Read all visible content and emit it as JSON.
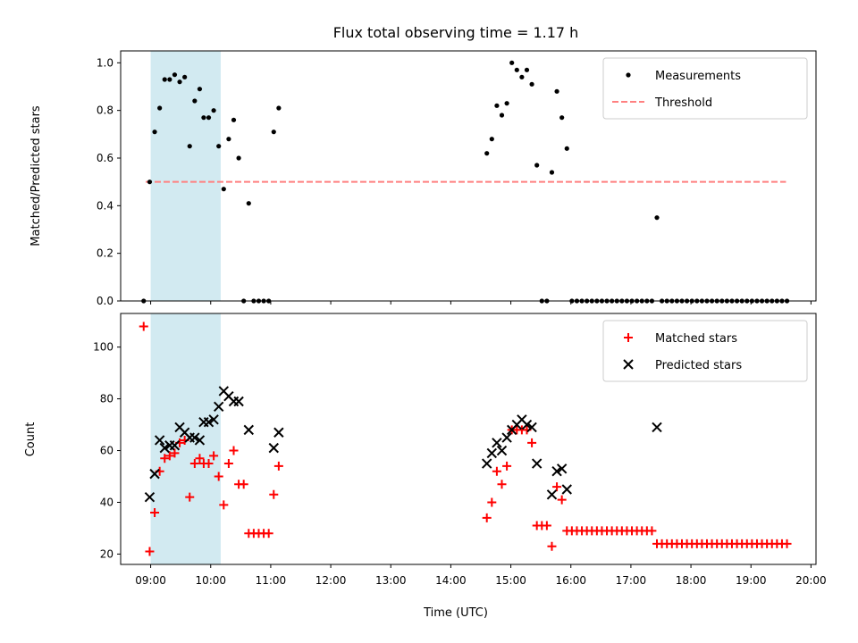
{
  "title": "Flux total observing time = 1.17 h",
  "colors": {
    "measurement": "#000000",
    "threshold": "#ff8080",
    "matched": "#ff0000",
    "predicted": "#000000",
    "shade": "#add8e6"
  },
  "chart_data": [
    {
      "type": "scatter",
      "ylabel": "Matched/Predicted stars",
      "xlim": [
        "08:30",
        "20:05"
      ],
      "ylim": [
        0,
        1.05
      ],
      "yticks": [
        "0.0",
        "0.2",
        "0.4",
        "0.6",
        "0.8",
        "1.0"
      ],
      "shaded_interval": [
        "09:00",
        "10:10"
      ],
      "threshold": {
        "name": "Threshold",
        "y": 0.5,
        "x_range": [
          "08:55",
          "19:35"
        ]
      },
      "legend": [
        "Measurements",
        "Threshold"
      ],
      "legend_position": "upper right",
      "series": [
        {
          "name": "Measurements",
          "points": [
            [
              "08:53",
              0.0
            ],
            [
              "08:59",
              0.5
            ],
            [
              "09:04",
              0.71
            ],
            [
              "09:09",
              0.81
            ],
            [
              "09:14",
              0.93
            ],
            [
              "09:19",
              0.93
            ],
            [
              "09:24",
              0.95
            ],
            [
              "09:29",
              0.92
            ],
            [
              "09:34",
              0.94
            ],
            [
              "09:39",
              0.65
            ],
            [
              "09:44",
              0.84
            ],
            [
              "09:49",
              0.89
            ],
            [
              "09:53",
              0.77
            ],
            [
              "09:58",
              0.77
            ],
            [
              "10:03",
              0.8
            ],
            [
              "10:08",
              0.65
            ],
            [
              "10:13",
              0.47
            ],
            [
              "10:18",
              0.68
            ],
            [
              "10:23",
              0.76
            ],
            [
              "10:28",
              0.6
            ],
            [
              "10:33",
              0.0
            ],
            [
              "10:38",
              0.41
            ],
            [
              "10:43",
              0.0
            ],
            [
              "10:48",
              0.0
            ],
            [
              "10:53",
              0.0
            ],
            [
              "10:58",
              0.0
            ],
            [
              "11:03",
              0.71
            ],
            [
              "11:08",
              0.81
            ],
            [
              "14:36",
              0.62
            ],
            [
              "14:41",
              0.68
            ],
            [
              "14:46",
              0.82
            ],
            [
              "14:51",
              0.78
            ],
            [
              "14:56",
              0.83
            ],
            [
              "15:01",
              1.0
            ],
            [
              "15:06",
              0.97
            ],
            [
              "15:11",
              0.94
            ],
            [
              "15:16",
              0.97
            ],
            [
              "15:21",
              0.91
            ],
            [
              "15:26",
              0.57
            ],
            [
              "15:31",
              0.0
            ],
            [
              "15:36",
              0.0
            ],
            [
              "15:41",
              0.54
            ],
            [
              "15:46",
              0.88
            ],
            [
              "15:51",
              0.77
            ],
            [
              "15:56",
              0.64
            ],
            [
              "16:01",
              0.0
            ],
            [
              "16:06",
              0.0
            ],
            [
              "16:11",
              0.0
            ],
            [
              "16:16",
              0.0
            ],
            [
              "16:21",
              0.0
            ],
            [
              "16:26",
              0.0
            ],
            [
              "16:31",
              0.0
            ],
            [
              "16:36",
              0.0
            ],
            [
              "16:41",
              0.0
            ],
            [
              "16:46",
              0.0
            ],
            [
              "16:51",
              0.0
            ],
            [
              "16:56",
              0.0
            ],
            [
              "17:01",
              0.0
            ],
            [
              "17:06",
              0.0
            ],
            [
              "17:11",
              0.0
            ],
            [
              "17:16",
              0.0
            ],
            [
              "17:21",
              0.0
            ],
            [
              "17:26",
              0.35
            ],
            [
              "17:31",
              0.0
            ],
            [
              "17:36",
              0.0
            ],
            [
              "17:41",
              0.0
            ],
            [
              "17:46",
              0.0
            ],
            [
              "17:51",
              0.0
            ],
            [
              "17:56",
              0.0
            ],
            [
              "18:01",
              0.0
            ],
            [
              "18:06",
              0.0
            ],
            [
              "18:11",
              0.0
            ],
            [
              "18:16",
              0.0
            ],
            [
              "18:21",
              0.0
            ],
            [
              "18:26",
              0.0
            ],
            [
              "18:31",
              0.0
            ],
            [
              "18:36",
              0.0
            ],
            [
              "18:41",
              0.0
            ],
            [
              "18:46",
              0.0
            ],
            [
              "18:51",
              0.0
            ],
            [
              "18:56",
              0.0
            ],
            [
              "19:01",
              0.0
            ],
            [
              "19:06",
              0.0
            ],
            [
              "19:11",
              0.0
            ],
            [
              "19:16",
              0.0
            ],
            [
              "19:21",
              0.0
            ],
            [
              "19:26",
              0.0
            ],
            [
              "19:31",
              0.0
            ],
            [
              "19:36",
              0.0
            ]
          ]
        }
      ]
    },
    {
      "type": "scatter",
      "ylabel": "Count",
      "xlabel": "Time (UTC)",
      "xlim": [
        "08:30",
        "20:05"
      ],
      "ylim": [
        16,
        113
      ],
      "yticks": [
        "20",
        "40",
        "60",
        "80",
        "100"
      ],
      "xticks": [
        "09:00",
        "10:00",
        "11:00",
        "12:00",
        "13:00",
        "14:00",
        "15:00",
        "16:00",
        "17:00",
        "18:00",
        "19:00",
        "20:00"
      ],
      "shaded_interval": [
        "09:00",
        "10:10"
      ],
      "legend": [
        "Matched stars",
        "Predicted stars"
      ],
      "legend_position": "upper right",
      "series": [
        {
          "name": "Matched stars",
          "marker": "+",
          "points": [
            [
              "08:53",
              108
            ],
            [
              "08:59",
              21
            ],
            [
              "09:04",
              36
            ],
            [
              "09:09",
              52
            ],
            [
              "09:14",
              57
            ],
            [
              "09:19",
              58
            ],
            [
              "09:24",
              59
            ],
            [
              "09:29",
              63
            ],
            [
              "09:34",
              64
            ],
            [
              "09:39",
              42
            ],
            [
              "09:44",
              55
            ],
            [
              "09:49",
              57
            ],
            [
              "09:53",
              55
            ],
            [
              "09:58",
              55
            ],
            [
              "10:03",
              58
            ],
            [
              "10:08",
              50
            ],
            [
              "10:13",
              39
            ],
            [
              "10:18",
              55
            ],
            [
              "10:23",
              60
            ],
            [
              "10:28",
              47
            ],
            [
              "10:33",
              47
            ],
            [
              "10:38",
              28
            ],
            [
              "10:43",
              28
            ],
            [
              "10:48",
              28
            ],
            [
              "10:53",
              28
            ],
            [
              "10:58",
              28
            ],
            [
              "11:03",
              43
            ],
            [
              "11:08",
              54
            ],
            [
              "14:36",
              34
            ],
            [
              "14:41",
              40
            ],
            [
              "14:46",
              52
            ],
            [
              "14:51",
              47
            ],
            [
              "14:56",
              54
            ],
            [
              "15:01",
              68
            ],
            [
              "15:06",
              68
            ],
            [
              "15:11",
              68
            ],
            [
              "15:16",
              68
            ],
            [
              "15:21",
              63
            ],
            [
              "15:26",
              31
            ],
            [
              "15:31",
              31
            ],
            [
              "15:36",
              31
            ],
            [
              "15:41",
              23
            ],
            [
              "15:46",
              46
            ],
            [
              "15:51",
              41
            ],
            [
              "15:56",
              29
            ],
            [
              "16:01",
              29
            ],
            [
              "16:06",
              29
            ],
            [
              "16:11",
              29
            ],
            [
              "16:16",
              29
            ],
            [
              "16:21",
              29
            ],
            [
              "16:26",
              29
            ],
            [
              "16:31",
              29
            ],
            [
              "16:36",
              29
            ],
            [
              "16:41",
              29
            ],
            [
              "16:46",
              29
            ],
            [
              "16:51",
              29
            ],
            [
              "16:56",
              29
            ],
            [
              "17:01",
              29
            ],
            [
              "17:06",
              29
            ],
            [
              "17:11",
              29
            ],
            [
              "17:16",
              29
            ],
            [
              "17:21",
              29
            ],
            [
              "17:26",
              24
            ],
            [
              "17:31",
              24
            ],
            [
              "17:36",
              24
            ],
            [
              "17:41",
              24
            ],
            [
              "17:46",
              24
            ],
            [
              "17:51",
              24
            ],
            [
              "17:56",
              24
            ],
            [
              "18:01",
              24
            ],
            [
              "18:06",
              24
            ],
            [
              "18:11",
              24
            ],
            [
              "18:16",
              24
            ],
            [
              "18:21",
              24
            ],
            [
              "18:26",
              24
            ],
            [
              "18:31",
              24
            ],
            [
              "18:36",
              24
            ],
            [
              "18:41",
              24
            ],
            [
              "18:46",
              24
            ],
            [
              "18:51",
              24
            ],
            [
              "18:56",
              24
            ],
            [
              "19:01",
              24
            ],
            [
              "19:06",
              24
            ],
            [
              "19:11",
              24
            ],
            [
              "19:16",
              24
            ],
            [
              "19:21",
              24
            ],
            [
              "19:26",
              24
            ],
            [
              "19:31",
              24
            ],
            [
              "19:36",
              24
            ]
          ]
        },
        {
          "name": "Predicted stars",
          "marker": "x",
          "points": [
            [
              "08:59",
              42
            ],
            [
              "09:04",
              51
            ],
            [
              "09:09",
              64
            ],
            [
              "09:14",
              61
            ],
            [
              "09:19",
              62
            ],
            [
              "09:24",
              62
            ],
            [
              "09:29",
              69
            ],
            [
              "09:34",
              67
            ],
            [
              "09:39",
              65
            ],
            [
              "09:44",
              65
            ],
            [
              "09:49",
              64
            ],
            [
              "09:53",
              71
            ],
            [
              "09:58",
              71
            ],
            [
              "10:03",
              72
            ],
            [
              "10:08",
              77
            ],
            [
              "10:13",
              83
            ],
            [
              "10:18",
              81
            ],
            [
              "10:23",
              79
            ],
            [
              "10:28",
              79
            ],
            [
              "10:38",
              68
            ],
            [
              "11:03",
              61
            ],
            [
              "11:08",
              67
            ],
            [
              "14:36",
              55
            ],
            [
              "14:41",
              59
            ],
            [
              "14:46",
              63
            ],
            [
              "14:51",
              60
            ],
            [
              "14:56",
              65
            ],
            [
              "15:01",
              68
            ],
            [
              "15:06",
              70
            ],
            [
              "15:11",
              72
            ],
            [
              "15:16",
              70
            ],
            [
              "15:21",
              69
            ],
            [
              "15:26",
              55
            ],
            [
              "15:41",
              43
            ],
            [
              "15:46",
              52
            ],
            [
              "15:51",
              53
            ],
            [
              "15:56",
              45
            ],
            [
              "17:26",
              69
            ]
          ]
        }
      ]
    }
  ]
}
